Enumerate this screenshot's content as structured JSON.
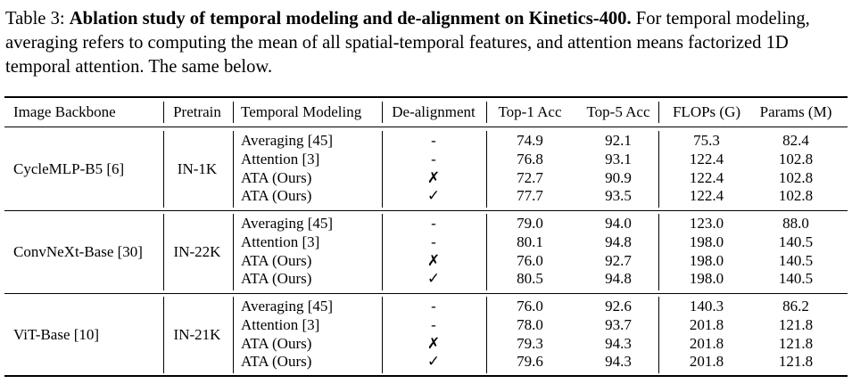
{
  "caption": {
    "label": "Table 3:",
    "bold": "Ablation study of temporal modeling and de-alignment on Kinetics-400.",
    "text_1": "For temporal",
    "text_2": "modeling, averaging refers to computing the mean of all spatial-temporal features, and attention",
    "text_3": "means factorized 1D temporal attention. The same below."
  },
  "headers": [
    "Image Backbone",
    "Pretrain",
    "Temporal Modeling",
    "De-alignment",
    "Top-1 Acc",
    "Top-5 Acc",
    "FLOPs (G)",
    "Params (M)"
  ],
  "groups": [
    {
      "backbone": "CycleMLP-B5 [6]",
      "pretrain": "IN-1K",
      "rows": [
        {
          "modeling": "Averaging [45]",
          "dealign": "-",
          "top1": "74.9",
          "top5": "92.1",
          "flops": "75.3",
          "params": "82.4"
        },
        {
          "modeling": "Attention [3]",
          "dealign": "-",
          "top1": "76.8",
          "top5": "93.1",
          "flops": "122.4",
          "params": "102.8"
        },
        {
          "modeling": "ATA (Ours)",
          "dealign": "✗",
          "top1": "72.7",
          "top5": "90.9",
          "flops": "122.4",
          "params": "102.8"
        },
        {
          "modeling": "ATA (Ours)",
          "dealign": "✓",
          "top1": "77.7",
          "top5": "93.5",
          "flops": "122.4",
          "params": "102.8"
        }
      ]
    },
    {
      "backbone": "ConvNeXt-Base [30]",
      "pretrain": "IN-22K",
      "rows": [
        {
          "modeling": "Averaging [45]",
          "dealign": "-",
          "top1": "79.0",
          "top5": "94.0",
          "flops": "123.0",
          "params": "88.0"
        },
        {
          "modeling": "Attention [3]",
          "dealign": "-",
          "top1": "80.1",
          "top5": "94.8",
          "flops": "198.0",
          "params": "140.5"
        },
        {
          "modeling": "ATA (Ours)",
          "dealign": "✗",
          "top1": "76.0",
          "top5": "92.7",
          "flops": "198.0",
          "params": "140.5"
        },
        {
          "modeling": "ATA (Ours)",
          "dealign": "✓",
          "top1": "80.5",
          "top5": "94.8",
          "flops": "198.0",
          "params": "140.5"
        }
      ]
    },
    {
      "backbone": "ViT-Base [10]",
      "pretrain": "IN-21K",
      "rows": [
        {
          "modeling": "Averaging [45]",
          "dealign": "-",
          "top1": "76.0",
          "top5": "92.6",
          "flops": "140.3",
          "params": "86.2"
        },
        {
          "modeling": "Attention [3]",
          "dealign": "-",
          "top1": "78.0",
          "top5": "93.7",
          "flops": "201.8",
          "params": "121.8"
        },
        {
          "modeling": "ATA (Ours)",
          "dealign": "✗",
          "top1": "79.3",
          "top5": "94.3",
          "flops": "201.8",
          "params": "121.8"
        },
        {
          "modeling": "ATA (Ours)",
          "dealign": "✓",
          "top1": "79.6",
          "top5": "94.3",
          "flops": "201.8",
          "params": "121.8"
        }
      ]
    }
  ]
}
